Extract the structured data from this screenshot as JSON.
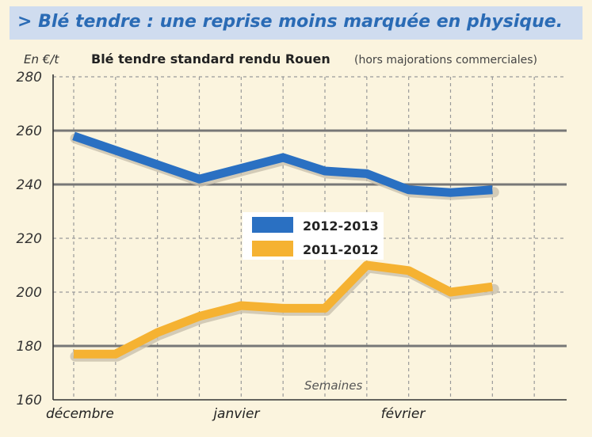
{
  "header": {
    "title": "> Blé tendre : une reprise moins marquée en physique."
  },
  "chart_data": {
    "type": "line",
    "title": "Blé tendre standard rendu Rouen",
    "subtitle": "(hors majorations commerciales)",
    "ylabel": "En €/t",
    "xlabel": "Semaines",
    "ylim": [
      160,
      280
    ],
    "yticks": [
      160,
      180,
      200,
      220,
      240,
      260,
      280
    ],
    "x_tick_labels": [
      "décembre",
      "janvier",
      "février"
    ],
    "x_tick_index": [
      0,
      4,
      8
    ],
    "x": [
      0,
      1,
      2,
      3,
      4,
      5,
      6,
      7,
      8,
      9,
      10,
      11,
      12
    ],
    "series": [
      {
        "name": "2012-2013",
        "color": "#2a70c2",
        "values": [
          258,
          null,
          null,
          242,
          null,
          250,
          245,
          244,
          238,
          237,
          238,
          null,
          null
        ],
        "points": [
          [
            0,
            258
          ],
          [
            1.5,
            250
          ],
          [
            3,
            242
          ],
          [
            5,
            250
          ],
          [
            6,
            245
          ],
          [
            7,
            244
          ],
          [
            8,
            238
          ],
          [
            9,
            237
          ],
          [
            10,
            238
          ]
        ]
      },
      {
        "name": "2011-2012",
        "color": "#f5b232",
        "points": [
          [
            0,
            177
          ],
          [
            1,
            177
          ],
          [
            2,
            185
          ],
          [
            3,
            191
          ],
          [
            4,
            195
          ],
          [
            5,
            194
          ],
          [
            6,
            194
          ],
          [
            7,
            210
          ],
          [
            8,
            208
          ],
          [
            9,
            200
          ],
          [
            10,
            202
          ]
        ]
      }
    ],
    "grid": true,
    "legend_position": "center"
  }
}
